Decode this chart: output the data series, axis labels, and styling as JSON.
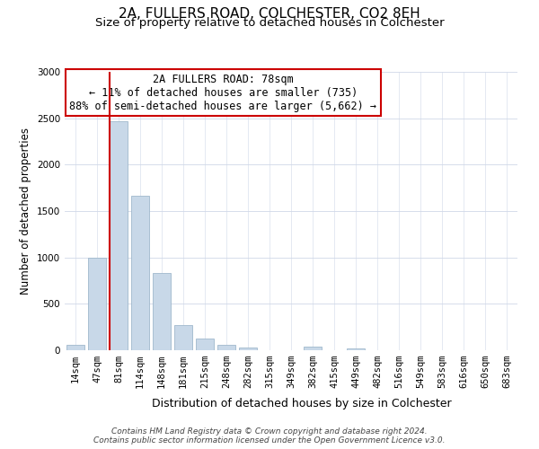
{
  "title": "2A, FULLERS ROAD, COLCHESTER, CO2 8EH",
  "subtitle": "Size of property relative to detached houses in Colchester",
  "xlabel": "Distribution of detached houses by size in Colchester",
  "ylabel": "Number of detached properties",
  "footnote1": "Contains HM Land Registry data © Crown copyright and database right 2024.",
  "footnote2": "Contains public sector information licensed under the Open Government Licence v3.0.",
  "bar_labels": [
    "14sqm",
    "47sqm",
    "81sqm",
    "114sqm",
    "148sqm",
    "181sqm",
    "215sqm",
    "248sqm",
    "282sqm",
    "315sqm",
    "349sqm",
    "382sqm",
    "415sqm",
    "449sqm",
    "482sqm",
    "516sqm",
    "549sqm",
    "583sqm",
    "616sqm",
    "650sqm",
    "683sqm"
  ],
  "bar_values": [
    55,
    1000,
    2470,
    1660,
    830,
    270,
    125,
    55,
    30,
    0,
    0,
    40,
    0,
    15,
    0,
    0,
    0,
    0,
    0,
    0,
    0
  ],
  "bar_color": "#c8d8e8",
  "bar_edge_color": "#a0b8cc",
  "highlight_bar_index": 2,
  "highlight_line_color": "#cc0000",
  "annotation_title": "2A FULLERS ROAD: 78sqm",
  "annotation_line1": "← 11% of detached houses are smaller (735)",
  "annotation_line2": "88% of semi-detached houses are larger (5,662) →",
  "annotation_box_color": "#ffffff",
  "annotation_box_edge_color": "#cc0000",
  "ylim": [
    0,
    3000
  ],
  "yticks": [
    0,
    500,
    1000,
    1500,
    2000,
    2500,
    3000
  ],
  "background_color": "#ffffff",
  "grid_color": "#d0d8e8",
  "title_fontsize": 11,
  "subtitle_fontsize": 9.5,
  "xlabel_fontsize": 9,
  "ylabel_fontsize": 8.5,
  "tick_fontsize": 7.5,
  "annotation_fontsize": 8.5,
  "footnote_fontsize": 6.5
}
